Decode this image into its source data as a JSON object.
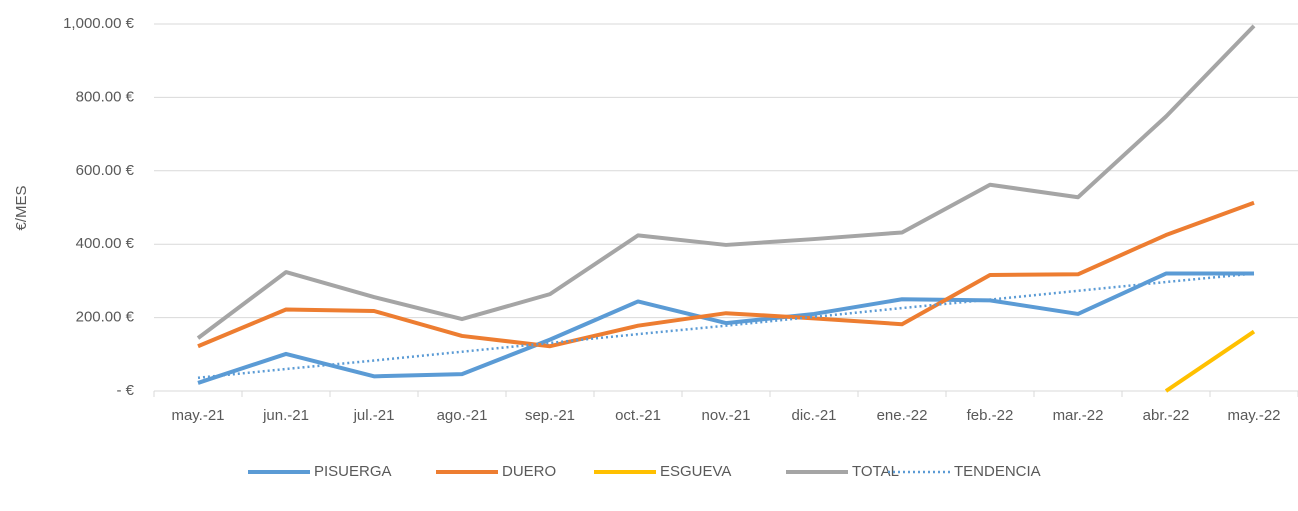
{
  "chart_data": {
    "type": "line",
    "y_axis_label": "€/MES",
    "categories": [
      "may.-21",
      "jun.-21",
      "jul.-21",
      "ago.-21",
      "sep.-21",
      "oct.-21",
      "nov.-21",
      "dic.-21",
      "ene.-22",
      "feb.-22",
      "mar.-22",
      "abr.-22",
      "may.-22"
    ],
    "ylim": [
      0,
      1000
    ],
    "yticks": [
      {
        "value": 0,
        "label": "-  €"
      },
      {
        "value": 200,
        "label": "200.00 €"
      },
      {
        "value": 400,
        "label": "400.00 €"
      },
      {
        "value": 600,
        "label": "600.00 €"
      },
      {
        "value": 800,
        "label": "800.00 €"
      },
      {
        "value": 1000,
        "label": "1,000.00 €"
      }
    ],
    "grid": true,
    "legend": "bottom",
    "series": [
      {
        "name": "PISUERGA",
        "color": "#5b9bd5",
        "style": "solid",
        "values": [
          22,
          101,
          40,
          46,
          140,
          244,
          185,
          210,
          250,
          247,
          210,
          320,
          320
        ]
      },
      {
        "name": "DUERO",
        "color": "#ed7d31",
        "style": "solid",
        "values": [
          122,
          222,
          218,
          150,
          122,
          178,
          212,
          198,
          182,
          316,
          318,
          425,
          513
        ]
      },
      {
        "name": "ESGUEVA",
        "color": "#ffc000",
        "style": "solid",
        "values": [
          null,
          null,
          null,
          null,
          null,
          null,
          null,
          null,
          null,
          null,
          null,
          0,
          162
        ]
      },
      {
        "name": "TOTAL",
        "color": "#a5a5a5",
        "style": "solid",
        "values": [
          144,
          324,
          256,
          196,
          264,
          424,
          398,
          414,
          432,
          562,
          528,
          748,
          995
        ]
      },
      {
        "name": "TENDENCIA",
        "color": "#5b9bd5",
        "style": "dotted",
        "values": [
          36,
          60,
          83,
          107,
          131,
          155,
          178,
          202,
          226,
          249,
          273,
          297,
          320
        ]
      }
    ]
  }
}
